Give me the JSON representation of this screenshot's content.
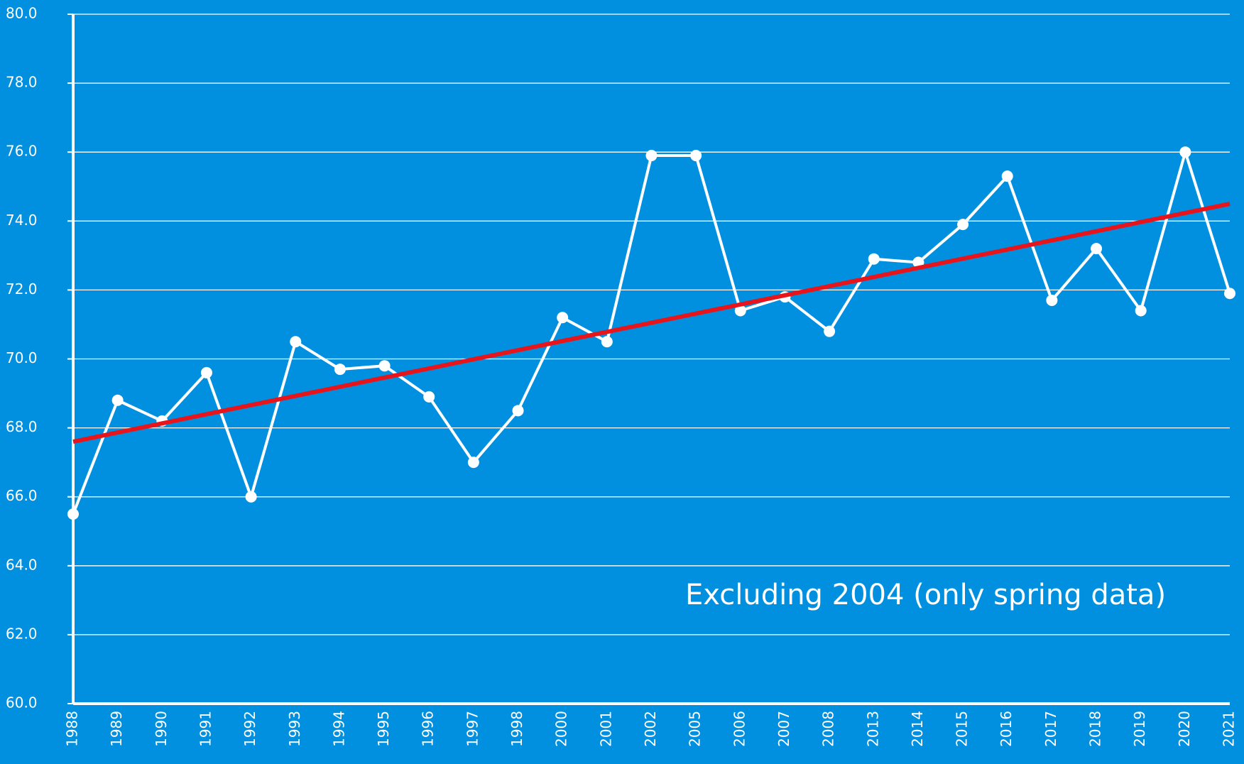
{
  "chart_data": {
    "type": "line",
    "annotation": "Excluding 2004 (only spring data)",
    "categories": [
      "1988",
      "1989",
      "1990",
      "1991",
      "1992",
      "1993",
      "1994",
      "1995",
      "1996",
      "1997",
      "1998",
      "2000",
      "2001",
      "2002",
      "2005",
      "2006",
      "2007",
      "2008",
      "2013",
      "2014",
      "2015",
      "2016",
      "2017",
      "2018",
      "2019",
      "2020",
      "2021"
    ],
    "series": [
      {
        "color": "#ffffff",
        "values": [
          65.5,
          68.8,
          68.2,
          69.6,
          66.0,
          70.5,
          69.7,
          69.8,
          68.9,
          67.0,
          68.5,
          71.2,
          70.5,
          75.9,
          75.9,
          71.4,
          71.8,
          70.8,
          72.9,
          72.8,
          73.9,
          75.3,
          71.7,
          73.2,
          71.4,
          76.0,
          71.9
        ]
      }
    ],
    "trendline": {
      "color": "#e8141b",
      "values": [
        67.6,
        74.5
      ]
    },
    "ylim": [
      60,
      80
    ],
    "yticks": [
      {
        "value": 60,
        "label": "60.0"
      },
      {
        "value": 62,
        "label": "62.0"
      },
      {
        "value": 64,
        "label": "64.0"
      },
      {
        "value": 66,
        "label": "66.0"
      },
      {
        "value": 68,
        "label": "68.0"
      },
      {
        "value": 70,
        "label": "70.0"
      },
      {
        "value": 72,
        "label": "72.0"
      },
      {
        "value": 74,
        "label": "74.0"
      },
      {
        "value": 76,
        "label": "76.0"
      },
      {
        "value": 78,
        "label": "78.0"
      },
      {
        "value": 80,
        "label": "80.0"
      }
    ],
    "grid": true,
    "background": "#0090df"
  }
}
